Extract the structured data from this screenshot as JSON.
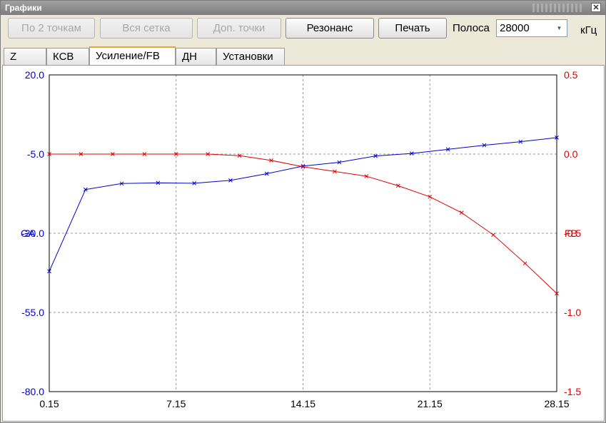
{
  "window": {
    "title": "Графики",
    "close_glyph": "✕"
  },
  "toolbar": {
    "two_points": "По 2 точкам",
    "all_grid": "Вся сетка",
    "extra_points": "Доп. точки",
    "resonance": "Резонанс",
    "print": "Печать",
    "band_label": "Полоса",
    "band_value": "28000",
    "band_unit": "кГц"
  },
  "tabs": [
    {
      "label": "Z"
    },
    {
      "label": "КСВ"
    },
    {
      "label": "Усиление/FB"
    },
    {
      "label": "ДН"
    },
    {
      "label": "Установки"
    }
  ],
  "active_tab": 2,
  "colors": {
    "ga": "#0000cc",
    "fb": "#dd0000",
    "grid": "#999999"
  },
  "chart_data": {
    "type": "line",
    "x": [
      0.15,
      1.9,
      3.65,
      5.4,
      7.15,
      8.9,
      10.65,
      12.4,
      14.15,
      15.9,
      17.65,
      19.4,
      21.15,
      22.9,
      24.65,
      26.4,
      28.15
    ],
    "xticks": [
      "0.15",
      "7.15",
      "14.15",
      "21.15",
      "28.15"
    ],
    "xlim": [
      0.15,
      28.15
    ],
    "left_axis": {
      "label": "GA",
      "ylim": [
        -80,
        20
      ],
      "ticks": [
        "20.0",
        "-5.0",
        "-30.0",
        "-55.0",
        "-80.0"
      ]
    },
    "right_axis": {
      "label": "FB",
      "ylim": [
        -1.5,
        0.5
      ],
      "ticks": [
        "0.5",
        "0.0",
        "-0.5",
        "-1.0",
        "-1.5"
      ]
    },
    "grid": true,
    "series": [
      {
        "name": "GA",
        "axis": "left",
        "x": [
          0.15,
          2.15,
          4.15,
          6.15,
          8.15,
          10.15,
          12.15,
          14.15,
          16.15,
          18.15,
          20.15,
          22.15,
          24.15,
          26.15,
          28.15
        ],
        "values": [
          -42,
          -16.2,
          -14.3,
          -14.1,
          -14.2,
          -13.3,
          -11.2,
          -8.8,
          -7.6,
          -5.6,
          -4.8,
          -3.5,
          -2.2,
          -1.1,
          0.2
        ]
      },
      {
        "name": "FB",
        "axis": "right",
        "x": [
          0.15,
          1.9,
          3.65,
          5.4,
          7.15,
          8.9,
          10.65,
          12.4,
          14.15,
          15.9,
          17.65,
          19.4,
          21.15,
          22.9,
          24.65,
          26.4,
          28.15
        ],
        "values": [
          0.0,
          0.0,
          0.0,
          0.0,
          0.0,
          0.0,
          -0.01,
          -0.04,
          -0.08,
          -0.11,
          -0.14,
          -0.2,
          -0.27,
          -0.37,
          -0.51,
          -0.69,
          -0.88
        ]
      }
    ]
  }
}
